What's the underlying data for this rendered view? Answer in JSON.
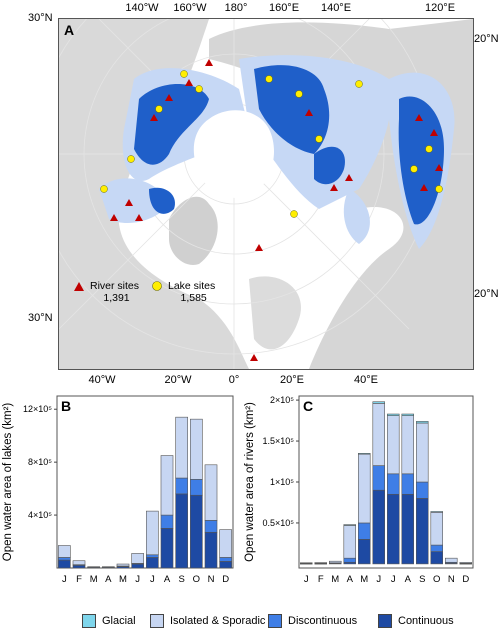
{
  "map": {
    "panel_letter": "A",
    "top_ticks": [
      "140°W",
      "160°W",
      "180°",
      "160°E",
      "140°E",
      "120°E"
    ],
    "bottom_ticks": [
      "40°W",
      "20°W",
      "0°",
      "20°E",
      "40°E"
    ],
    "left_ticks": [
      "30°N",
      "30°N"
    ],
    "right_ticks": [
      "20°N",
      "20°N"
    ],
    "legend": {
      "river_label": "River sites",
      "river_count": "1,391",
      "lake_label": "Lake sites",
      "lake_count": "1,585"
    },
    "colors": {
      "land": "#d9d9d9",
      "ocean": "#ffffff",
      "continuous": "#1f5fc9",
      "isolated": "#c6d8f5",
      "river_marker": "#c00000",
      "lake_marker": "#ffee00"
    }
  },
  "legend": {
    "items": [
      {
        "label": "Glacial",
        "color": "#7fd6ec"
      },
      {
        "label": "Isolated & Sporadic",
        "color": "#c7d6f2"
      },
      {
        "label": "Discontinuous",
        "color": "#3f7ee6"
      },
      {
        "label": "Continuous",
        "color": "#1e4aa3"
      }
    ]
  },
  "chart_data": [
    {
      "type": "bar",
      "panel": "B",
      "stacked": true,
      "ylabel": "Open water area of lakes (km²)",
      "yticks": [
        "4×10⁵",
        "8×10⁵",
        "12×10⁵"
      ],
      "ytick_values": [
        400000,
        800000,
        1200000
      ],
      "ylim": [
        0,
        1300000
      ],
      "categories": [
        "J",
        "F",
        "M",
        "A",
        "M",
        "J",
        "J",
        "A",
        "S",
        "O",
        "N",
        "D"
      ],
      "series": [
        {
          "name": "Continuous",
          "values": [
            60000,
            20000,
            5000,
            5000,
            10000,
            30000,
            80000,
            300000,
            560000,
            550000,
            270000,
            50000
          ]
        },
        {
          "name": "Discontinuous",
          "values": [
            20000,
            5000,
            0,
            0,
            5000,
            5000,
            20000,
            100000,
            120000,
            120000,
            90000,
            30000
          ]
        },
        {
          "name": "Isolated & Sporadic",
          "values": [
            90000,
            30000,
            5000,
            5000,
            15000,
            75000,
            330000,
            450000,
            460000,
            455000,
            420000,
            210000
          ]
        },
        {
          "name": "Glacial",
          "values": [
            0,
            0,
            0,
            0,
            0,
            0,
            0,
            0,
            0,
            0,
            0,
            0
          ]
        }
      ]
    },
    {
      "type": "bar",
      "panel": "C",
      "stacked": true,
      "ylabel": "Open water area of rivers (km²)",
      "yticks": [
        "0.5×10⁵",
        "1×10⁵",
        "1.5×10⁵",
        "2×10⁵"
      ],
      "ytick_values": [
        50000,
        100000,
        150000,
        200000
      ],
      "ylim": [
        -5000,
        205000
      ],
      "categories": [
        "J",
        "F",
        "M",
        "A",
        "M",
        "J",
        "J",
        "A",
        "S",
        "O",
        "N",
        "D"
      ],
      "series": [
        {
          "name": "Continuous",
          "values": [
            500,
            500,
            800,
            2000,
            30000,
            90000,
            85000,
            85000,
            80000,
            15000,
            1000,
            500
          ]
        },
        {
          "name": "Discontinuous",
          "values": [
            300,
            300,
            500,
            5000,
            20000,
            30000,
            25000,
            25000,
            20000,
            8000,
            1000,
            300
          ]
        },
        {
          "name": "Isolated & Sporadic",
          "values": [
            600,
            800,
            2000,
            40000,
            84000,
            76000,
            71000,
            71000,
            72000,
            40000,
            5000,
            1000
          ]
        },
        {
          "name": "Glacial",
          "values": [
            0,
            0,
            0,
            1000,
            1000,
            2000,
            2000,
            2000,
            2000,
            1000,
            0,
            0
          ]
        }
      ]
    }
  ]
}
